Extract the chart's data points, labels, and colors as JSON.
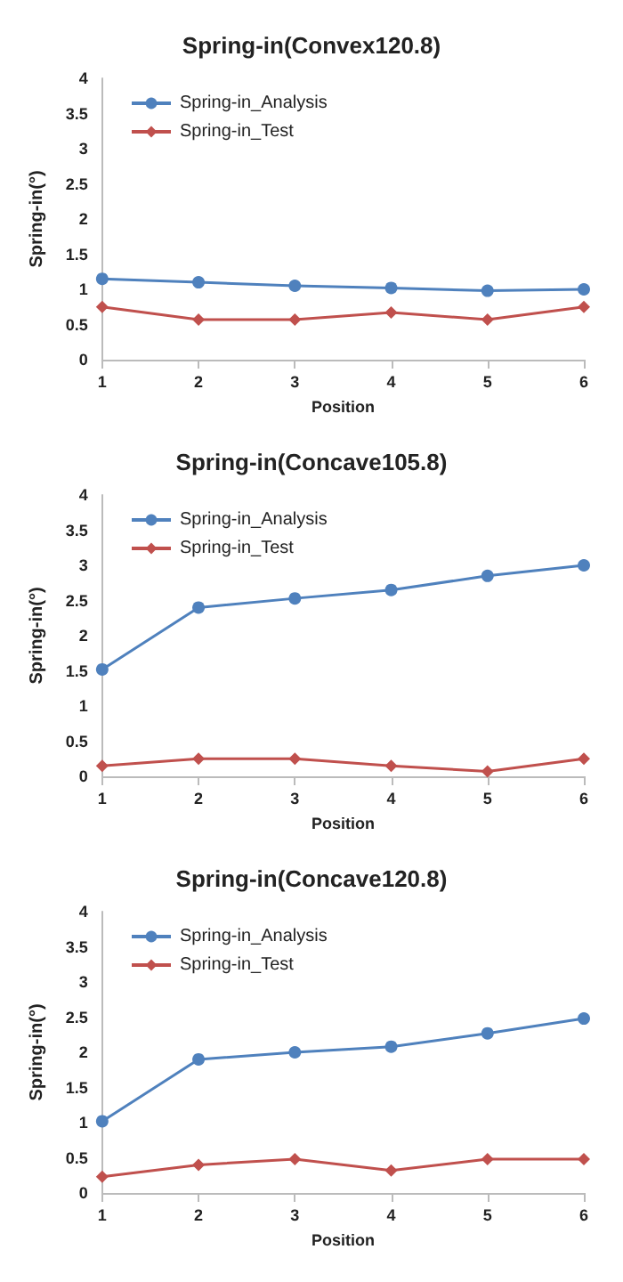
{
  "chart_data": [
    {
      "type": "line",
      "title": "Spring-in(Convex120.8)",
      "xlabel": "Position",
      "ylabel": "Spring-in(°)",
      "categories": [
        "1",
        "2",
        "3",
        "4",
        "5",
        "6"
      ],
      "ylim": [
        0,
        4
      ],
      "yticks": [
        0,
        0.5,
        1,
        1.5,
        2,
        2.5,
        3,
        3.5,
        4
      ],
      "grid": false,
      "legend": "top left",
      "series": [
        {
          "name": "Spring-in_Analysis",
          "color": "#4f81bd",
          "marker": "circle",
          "values": [
            1.15,
            1.1,
            1.05,
            1.02,
            0.98,
            1.0
          ]
        },
        {
          "name": "Spring-in_Test",
          "color": "#c0504d",
          "marker": "diamond",
          "values": [
            0.75,
            0.57,
            0.57,
            0.67,
            0.57,
            0.75
          ]
        }
      ]
    },
    {
      "type": "line",
      "title": "Spring-in(Concave105.8)",
      "xlabel": "Position",
      "ylabel": "Spring-in(°)",
      "categories": [
        "1",
        "2",
        "3",
        "4",
        "5",
        "6"
      ],
      "ylim": [
        0,
        4
      ],
      "yticks": [
        0,
        0.5,
        1,
        1.5,
        2,
        2.5,
        3,
        3.5,
        4
      ],
      "grid": false,
      "legend": "top left",
      "series": [
        {
          "name": "Spring-in_Analysis",
          "color": "#4f81bd",
          "marker": "circle",
          "values": [
            1.52,
            2.4,
            2.53,
            2.65,
            2.85,
            3.0
          ]
        },
        {
          "name": "Spring-in_Test",
          "color": "#c0504d",
          "marker": "diamond",
          "values": [
            0.15,
            0.25,
            0.25,
            0.15,
            0.07,
            0.25
          ]
        }
      ]
    },
    {
      "type": "line",
      "title": "Spring-in(Concave120.8)",
      "xlabel": "Position",
      "ylabel": "Spring-in(°)",
      "categories": [
        "1",
        "2",
        "3",
        "4",
        "5",
        "6"
      ],
      "ylim": [
        0,
        4
      ],
      "yticks": [
        0,
        0.5,
        1,
        1.5,
        2,
        2.5,
        3,
        3.5,
        4
      ],
      "grid": false,
      "legend": "top left",
      "series": [
        {
          "name": "Spring-in_Analysis",
          "color": "#4f81bd",
          "marker": "circle",
          "values": [
            1.02,
            1.9,
            2.0,
            2.08,
            2.27,
            2.48
          ]
        },
        {
          "name": "Spring-in_Test",
          "color": "#c0504d",
          "marker": "diamond",
          "values": [
            0.23,
            0.4,
            0.48,
            0.32,
            0.48,
            0.48
          ]
        }
      ]
    }
  ]
}
